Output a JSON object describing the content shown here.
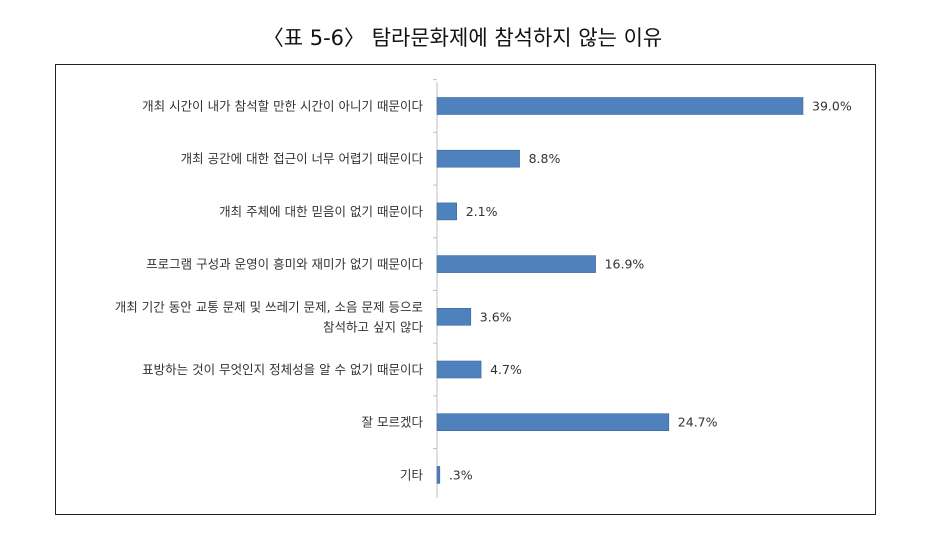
{
  "title": "〈표 5-6〉 탐라문화제에 참석하지 않는 이유",
  "chart_data": {
    "type": "bar",
    "orientation": "horizontal",
    "categories": [
      [
        "개최 시간이 내가 참석할 만한 시간이 아니기 때문이다"
      ],
      [
        "개최 공간에 대한 접근이 너무 어렵기 때문이다"
      ],
      [
        "개최 주체에 대한 믿음이 없기 때문이다"
      ],
      [
        "프로그램 구성과 운영이 흥미와 재미가 없기 때문이다"
      ],
      [
        "개최 기간 동안 교통 문제 및 쓰레기 문제, 소음 문제 등으로",
        "참석하고 싶지 않다"
      ],
      [
        "표방하는 것이 무엇인지 정체성을 알 수 없기 때문이다"
      ],
      [
        "잘 모르겠다"
      ],
      [
        "기타"
      ]
    ],
    "values": [
      39.0,
      8.8,
      2.1,
      16.9,
      3.6,
      4.7,
      24.7,
      0.3
    ],
    "data_labels": [
      "39.0%",
      "8.8%",
      "2.1%",
      "16.9%",
      "3.6%",
      "4.7%",
      "24.7%",
      ".3%"
    ],
    "xlim": [
      0,
      39
    ],
    "bar_color": "#4F81BD",
    "axis_color": "#BFBFBF",
    "grid": false
  }
}
